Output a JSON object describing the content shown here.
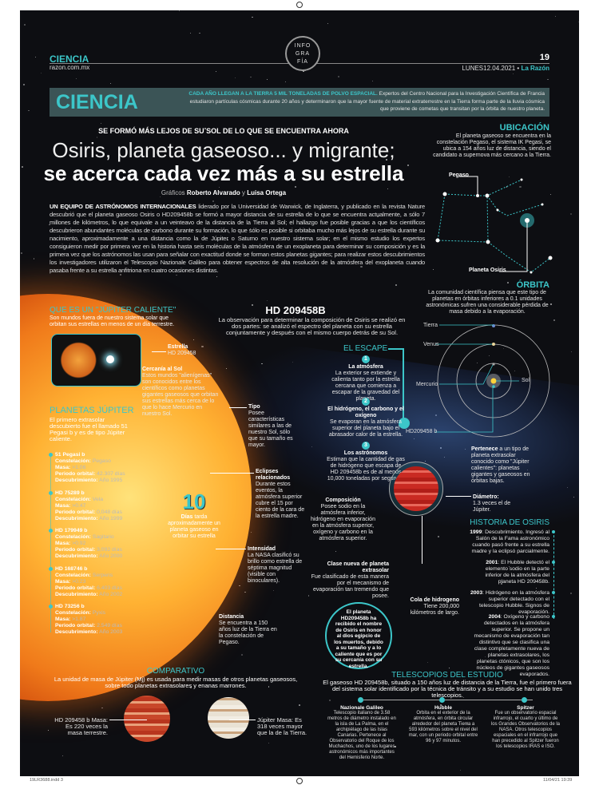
{
  "header": {
    "section": "CIENCIA",
    "site": "razon.com.mx",
    "badge": [
      "INFO",
      "GRA",
      "FÍA"
    ],
    "page": "19",
    "date": "LUNES12.04.2021",
    "brand": "La Razón"
  },
  "banner": {
    "title": "CIENCIA",
    "lead": "CADA AÑO LLEGAN A LA TIERRA 5 MIL TONELADAS DE POLVO ESPACIAL.",
    "text": "Expertos del Centro Nacional para la Investigación Científica de Francia estudiaron partículas cósmicas durante 20 años y determinaron que la mayor fuente de material extraterrestre en la Tierra forma parte de la lluvia cósmica que proviene de cometas que transitan por la órbita de nuestro planeta."
  },
  "article": {
    "kicker": "SE FORMÓ MÁS LEJOS DE SU SOL DE LO QUE SE ENCUENTRA AHORA",
    "title1": "Osiris, planeta gaseoso... y migrante;",
    "title2": "se acerca cada vez más a su estrella",
    "credit_pre": "Gráficos",
    "credit_a": "Roberto Alvarado",
    "credit_y": "y",
    "credit_b": "Luisa Ortega",
    "lead": "UN EQUIPO DE ASTRÓNOMOS INTERNACIONALES",
    "body": "liderado por la Universidad de Warwick, de Inglaterra, y publicado en la revista Nature descubrió que el planeta gaseoso Osiris o HD209458b se formó a mayor distancia de su estrella de lo que se encuentra actualmente, a sólo 7 millones de kilómetros, lo que equivale a un veinteavo de la distancia de la Tierra al Sol; el hallazgo fue posible gracias a que los científicos descubrieron abundantes moléculas de carbono durante su formación, lo que sólo es posible si orbitaba mucho más lejos de su estrella durante su nacimiento, aproximadamente a una distancia como la de Júpiter o Saturno en nuestro sistema solar; en el mismo estudio los expertos consiguieron medir por primera vez en la historia hasta seis moléculas de la atmósfera de un exoplaneta para determinar su composición y es la primera vez que los astrónomos las usan para señalar con exactitud donde se forman estos planetas gigantes; para realizar estos descubrimientos los investigadores utilizaron el Telescopio Nazionale Galileo para obtener espectros de alta resolución de la atmósfera del exoplaneta cuando pasaba frente a su estrella anfitriona en cuatro ocasiones distintas."
  },
  "ubicacion": {
    "title": "UBICACIÓN",
    "text": "El planeta gaseoso se encuentra en la constelación Pegaso, el sistema IK Pegasi, se ubica a 154 años luz de distancia, siendo el candidato a supernova más cercano a la Tierra.",
    "label_pegaso": "Pegaso",
    "label_osiris": "Planeta Osiris"
  },
  "orbita": {
    "title": "ÓRBITA",
    "text": "La comunidad científica piensa que este tipo de planetas en órbitas inferiores a 0.1 unidades astronómicas sufren una considerable pérdida de masa debido a la evaporación.",
    "tierra": "Tierra",
    "venus": "Venus",
    "mercurio": "Mercurio",
    "sol": "Sol",
    "planet": "HD209458 b"
  },
  "jupiter_caliente": {
    "title": "QUE ES UN \"JÚPITER CALIENTE\"",
    "text": "Son mundos fuera de nuestro sistema solar que orbitan sus estrellas en menos de un día terrestre."
  },
  "planetas": {
    "title": "PLANETAS JÚPITER",
    "text": "El primero extrasolar descubierto fue el llamado 51 Pegasi b y es de tipo Júpiter caliente.",
    "k_const": "Constelación:",
    "k_masa": "Masa:",
    "k_per": "Periodo orbital:",
    "k_desc": "Descubrimiento:",
    "items": [
      {
        "name": "51 Pegasi b",
        "const": "Pegaso",
        "masa": ">1.06",
        "periodo": "42.307 días",
        "desc": "Año 1995"
      },
      {
        "name": "HD 75289 b",
        "const": "Vela",
        "masa": ">0.47",
        "periodo": "0,048 días",
        "desc": "Año 1999"
      },
      {
        "name": "HD 179949 b",
        "const": "Sagitario",
        "masa": ">0.92",
        "periodo": "3,092 días",
        "desc": "Año 2000"
      },
      {
        "name": "HD 168746 b",
        "const": "Serpens",
        "masa": ">0.23",
        "periodo": "6.403 días",
        "desc": "Año 2002"
      },
      {
        "name": "HD 73256 b",
        "const": "Pyxis",
        "masa": ">1.87",
        "periodo": "2.549 días",
        "desc": "Año 2003"
      }
    ]
  },
  "star": {
    "estrella_t": "Estrella",
    "estrella": "HD 209458",
    "cercania_t": "Cercanía al Sol",
    "cercania": "Estos mundos \"alienígenas\" son conocidos entre los científicos como planetas gigantes gaseosos que orbitan sus estrellas más cerca de lo que lo hace Mercurio en nuestro Sol.",
    "tipo_t": "Tipo",
    "tipo": "Posee características similares a las de nuestro Sol, sólo que su tamaño es mayor.",
    "eclipses_t": "Eclipses relacionados",
    "eclipses": "Durante estos eventos, la atmósfera superior cubre el 15 por ciento de la cara de la estrella madre.",
    "big": "10",
    "dias_t": "Días",
    "dias": "tarda aproximadamente un planeta gaseoso en orbitar su estrella",
    "intensidad_t": "Intensidad",
    "intensidad": "La NASA clasificó su brillo como estrella de séptima magnitud (visible con binoculares).",
    "distancia_t": "Distancia",
    "distancia": "Se encuentra a 150 años luz de la Tierra en la constelación de Pegaso."
  },
  "hd": {
    "title": "HD 209458B",
    "text": "La observación para determinar la composición de Osiris se realizó en dos partes: se analizó el espectro del planeta con su estrella conjuntamente y después con el mismo cuerpo detrás de su Sol."
  },
  "escape": {
    "title": "EL ESCAPE",
    "steps": [
      {
        "n": "1",
        "t": "La atmósfera",
        "d": "La exterior se extiende y calienta tanto por la estrella cercana que comienza a escapar de la gravedad del planeta."
      },
      {
        "n": "2",
        "t": "El hidrógeno, el carbono y el oxígeno",
        "d": "Se evaporan en la atmósfera superior del planeta bajo el abrasador calor de la estrella."
      },
      {
        "n": "3",
        "t": "Los astrónomos",
        "d": "Estiman que la cantidad de gas de hidrógeno que escapa de HD 209458b es de al menos 10,000 toneladas por segundo."
      }
    ]
  },
  "planet": {
    "pertenece_t": "Pertenece",
    "pertenece": "a un tipo de planeta extrasolar conocido como \"Júpiter calientes\": planetas gigantes y gaseosos en órbitas bajas.",
    "diametro_t": "Diámetro:",
    "diametro": "1.3 veces el de Júpiter.",
    "composicion_t": "Composición",
    "composicion": "Posee sodio en la atmósfera inferior, hidrógeno en evaporación en la atmósfera superior, oxígeno y carbono en la atmósfera superior.",
    "clase_t": "Clase nueva de planeta extrasolar",
    "clase": "Fue clasificado de esta manera por el mecanismo de evaporación tan tremendo que posee.",
    "cola_t": "Cola de hidrogeno",
    "cola": "Tiene 200,000 kilómetros de largo.",
    "circle": "El planeta HD209458b ha recibido el nombre de Osiris en honor al dios egipcio de los muertos, debido a su tamaño y a lo caliente que es por su cercanía con su estrella."
  },
  "historia": {
    "title": "HISTORIA DE OSIRIS",
    "items": [
      {
        "y": "1999",
        "d": ": Descubrimiento. Ingresó al Salón de la Fama astronómico cuando pasó frente a su estrella madre y la eclipsó parcialmente."
      },
      {
        "y": "2001",
        "d": ": El Hubble detectó el elemento sodio en la parte inferior de la atmósfera del planeta HD 209458b."
      },
      {
        "y": "2003",
        "d": ": Hidrógeno en la atmósfera superior detectado con el telescopio Hubble. Signos de evaporación."
      },
      {
        "y": "2004",
        "d": ": Oxígeno y carbono detectados en la atmósfera superior. Se propone un mecanismo de evaporación tan distintivo que se clasifica una clase completamente nueva de planetas extrasolares, los planetas ctónicos, que son los núcleos de gigantes gaseosos evaporados."
      }
    ]
  },
  "comparativo": {
    "title": "COMPARATIVO",
    "text": "La unidad de masa de Júpiter (Mj) es usada para medir masas de otros planetas gaseosos, sobre todo planetas extrasolares y enanas marrones.",
    "a": "HD 209458 b Masa: Es 220 veces la masa terrestre.",
    "b": "Júpiter Masa: Es 318 veces mayor que la de la Tierra."
  },
  "telescopios": {
    "title": "TELESCOPIOS DEL ESTUDIO",
    "text": "El gaseoso HD 209458b, situado a 150 años luz de distancia de la Tierra, fue el primero fuera del sistema solar identificado por la técnica de tránsito y a su estudio se han unido tres telescopios.",
    "items": [
      {
        "t": "Nazionale Galileo",
        "d": "Telescopio italiano de 3.58 metros de diámetro instalado en la isla de La Palma, en el archipiélago de las Islas Canarias. Pertenece al Observatorio del Roque de los Muchachos, uno de los lugares astronómicos más importantes del Hemisferio Norte."
      },
      {
        "t": "Hubble",
        "d": "Orbita en el exterior de la atmósfera, en órbita circular alrededor del planeta Tierra a 593 kilómetros sobre el nivel del mar, con un periodo orbital entre 96 y 97 minutos."
      },
      {
        "t": "Spitzer",
        "d": "Fue un observatorio espacial infrarrojo, el cuarto y último de los Grandes Observatorios de la NASA. Otros telescopios espaciales en el infrarrojo que han precedido al Spitzer fueron los telescopios IRAS e ISO."
      }
    ]
  },
  "footer": {
    "file": "19LR3688.indd 3",
    "stamp": "11/04/21 19:39"
  },
  "colors": {
    "accent": "#3cc6c9",
    "background": "#0d0e12",
    "sun": "#f07a1a"
  }
}
